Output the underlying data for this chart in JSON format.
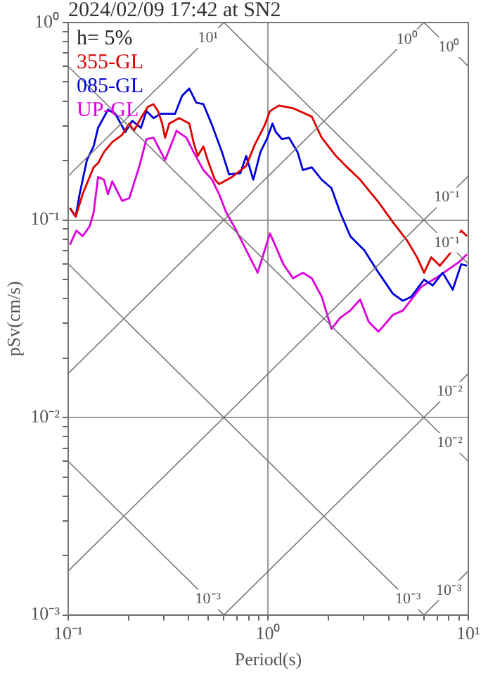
{
  "chart_data": {
    "type": "line",
    "title": "2024/02/09 17:42 at SN2",
    "xlabel": "Period(s)",
    "ylabel": "pSv(cm/s)",
    "legend_title": "h= 5%",
    "legend": "top left",
    "marker": "none",
    "line_style": "solid",
    "log": "xy",
    "grid": true,
    "xlim": [
      0.1,
      10
    ],
    "ylim": [
      0.001,
      1
    ],
    "xticks": [
      {
        "value": 0.1,
        "label": "10⁻¹"
      },
      {
        "value": 0.2,
        "label": null
      },
      {
        "value": 0.3,
        "label": null
      },
      {
        "value": 0.4,
        "label": null
      },
      {
        "value": 0.5,
        "label": null
      },
      {
        "value": 0.6,
        "label": null
      },
      {
        "value": 0.7,
        "label": null
      },
      {
        "value": 0.8,
        "label": null
      },
      {
        "value": 0.9,
        "label": null
      },
      {
        "value": 1,
        "label": "10⁰"
      },
      {
        "value": 2,
        "label": null
      },
      {
        "value": 3,
        "label": null
      },
      {
        "value": 4,
        "label": null
      },
      {
        "value": 5,
        "label": null
      },
      {
        "value": 6,
        "label": null
      },
      {
        "value": 7,
        "label": null
      },
      {
        "value": 8,
        "label": null
      },
      {
        "value": 9,
        "label": null
      },
      {
        "value": 10,
        "label": "10¹"
      }
    ],
    "yticks": [
      {
        "value": 0.001,
        "label": "10⁻³"
      },
      {
        "value": 0.002,
        "label": null
      },
      {
        "value": 0.003,
        "label": null
      },
      {
        "value": 0.004,
        "label": null
      },
      {
        "value": 0.005,
        "label": null
      },
      {
        "value": 0.006,
        "label": null
      },
      {
        "value": 0.007,
        "label": null
      },
      {
        "value": 0.008,
        "label": null
      },
      {
        "value": 0.009,
        "label": null
      },
      {
        "value": 0.01,
        "label": "10⁻²"
      },
      {
        "value": 0.02,
        "label": null
      },
      {
        "value": 0.03,
        "label": null
      },
      {
        "value": 0.04,
        "label": null
      },
      {
        "value": 0.05,
        "label": null
      },
      {
        "value": 0.06,
        "label": null
      },
      {
        "value": 0.07,
        "label": null
      },
      {
        "value": 0.08,
        "label": null
      },
      {
        "value": 0.09,
        "label": null
      },
      {
        "value": 0.1,
        "label": "10⁻¹"
      },
      {
        "value": 0.2,
        "label": null
      },
      {
        "value": 0.3,
        "label": null
      },
      {
        "value": 0.4,
        "label": null
      },
      {
        "value": 0.5,
        "label": null
      },
      {
        "value": 0.6,
        "label": null
      },
      {
        "value": 0.7,
        "label": null
      },
      {
        "value": 0.8,
        "label": null
      },
      {
        "value": 0.9,
        "label": null
      },
      {
        "value": 1,
        "label": "10⁰"
      }
    ],
    "series": [
      {
        "color": "#777777",
        "x": [
          0.1,
          0.6
        ],
        "values": [
          0.006,
          0.001
        ]
      },
      {
        "color": "#777777",
        "x": [
          0.1,
          6
        ],
        "values": [
          0.06,
          0.001
        ]
      },
      {
        "color": "#777777",
        "x": [
          0.1,
          10
        ],
        "values": [
          0.6,
          0.006
        ]
      },
      {
        "color": "#777777",
        "x": [
          0.6,
          10
        ],
        "values": [
          1,
          0.06
        ]
      },
      {
        "color": "#777777",
        "x": [
          6,
          10
        ],
        "values": [
          1,
          0.6
        ]
      },
      {
        "color": "#777777",
        "x": [
          6,
          10
        ],
        "values": [
          0.001,
          0.00167
        ]
      },
      {
        "color": "#777777",
        "x": [
          0.6,
          10
        ],
        "values": [
          0.001,
          0.0167
        ]
      },
      {
        "color": "#777777",
        "x": [
          0.1,
          10
        ],
        "values": [
          0.00167,
          0.167
        ]
      },
      {
        "color": "#777777",
        "x": [
          0.1,
          6
        ],
        "values": [
          0.0167,
          1
        ]
      },
      {
        "color": "#777777",
        "x": [
          0.1,
          0.6
        ],
        "values": [
          0.167,
          1
        ]
      },
      {
        "name": "355-GL",
        "color": "#dd0000",
        "x": [
          0.102,
          0.109,
          0.118,
          0.134,
          0.141,
          0.151,
          0.166,
          0.186,
          0.202,
          0.213,
          0.231,
          0.25,
          0.267,
          0.281,
          0.295,
          0.305,
          0.32,
          0.359,
          0.403,
          0.423,
          0.444,
          0.474,
          0.498,
          0.541,
          0.568,
          0.659,
          0.776,
          0.855,
          0.96,
          1.02,
          1.13,
          1.33,
          1.65,
          1.85,
          2.18,
          2.44,
          2.88,
          3.56,
          4.2,
          4.94,
          5.54,
          6.01,
          6.53,
          7.21,
          8.36,
          9.21,
          9.84
        ],
        "values": [
          0.115,
          0.104,
          0.135,
          0.185,
          0.194,
          0.221,
          0.248,
          0.27,
          0.308,
          0.283,
          0.328,
          0.374,
          0.386,
          0.356,
          0.308,
          0.261,
          0.308,
          0.328,
          0.308,
          0.248,
          0.211,
          0.236,
          0.201,
          0.16,
          0.152,
          0.165,
          0.188,
          0.24,
          0.302,
          0.356,
          0.38,
          0.368,
          0.334,
          0.261,
          0.211,
          0.188,
          0.16,
          0.123,
          0.0975,
          0.0788,
          0.0648,
          0.0541,
          0.0648,
          0.0587,
          0.0703,
          0.0885,
          0.0828
        ]
      },
      {
        "name": "085-GL",
        "color": "#0000dd",
        "x": [
          0.102,
          0.109,
          0.114,
          0.124,
          0.134,
          0.141,
          0.158,
          0.172,
          0.193,
          0.209,
          0.231,
          0.246,
          0.267,
          0.29,
          0.342,
          0.371,
          0.403,
          0.437,
          0.474,
          0.524,
          0.587,
          0.637,
          0.726,
          0.776,
          0.842,
          0.914,
          0.991,
          1.05,
          1.09,
          1.17,
          1.27,
          1.4,
          1.49,
          1.65,
          1.85,
          2.07,
          2.29,
          2.57,
          3.02,
          3.56,
          4.2,
          4.71,
          5.19,
          6.01,
          6.64,
          7.45,
          8.36,
          9.21,
          9.84
        ],
        "values": [
          0.115,
          0.104,
          0.135,
          0.201,
          0.236,
          0.293,
          0.362,
          0.345,
          0.279,
          0.318,
          0.293,
          0.356,
          0.328,
          0.345,
          0.345,
          0.426,
          0.463,
          0.393,
          0.386,
          0.302,
          0.221,
          0.17,
          0.173,
          0.211,
          0.16,
          0.221,
          0.261,
          0.308,
          0.279,
          0.257,
          0.261,
          0.221,
          0.179,
          0.185,
          0.16,
          0.145,
          0.109,
          0.0828,
          0.0703,
          0.0541,
          0.0423,
          0.039,
          0.0409,
          0.0499,
          0.0467,
          0.0541,
          0.0444,
          0.0597,
          0.0587
        ]
      },
      {
        "name": "UP-GL",
        "color": "#dd00dd",
        "x": [
          0.102,
          0.11,
          0.118,
          0.128,
          0.134,
          0.141,
          0.151,
          0.158,
          0.166,
          0.186,
          0.202,
          0.227,
          0.246,
          0.267,
          0.305,
          0.348,
          0.39,
          0.423,
          0.474,
          0.524,
          0.568,
          0.617,
          0.692,
          0.776,
          0.885,
          0.96,
          1.02,
          1.08,
          1.19,
          1.33,
          1.49,
          1.65,
          1.85,
          2.07,
          2.29,
          2.57,
          2.88,
          3.18,
          3.56,
          4.2,
          4.71,
          5.82,
          6.86,
          8.08,
          9.06,
          9.84
        ],
        "values": [
          0.075,
          0.0885,
          0.0828,
          0.0929,
          0.109,
          0.165,
          0.16,
          0.135,
          0.157,
          0.125,
          0.129,
          0.188,
          0.257,
          0.261,
          0.201,
          0.283,
          0.261,
          0.221,
          0.179,
          0.16,
          0.135,
          0.109,
          0.0885,
          0.0703,
          0.0541,
          0.0703,
          0.0855,
          0.075,
          0.0597,
          0.0507,
          0.0541,
          0.0507,
          0.0409,
          0.0281,
          0.032,
          0.0348,
          0.0396,
          0.0305,
          0.0272,
          0.0331,
          0.0348,
          0.0459,
          0.0507,
          0.0568,
          0.0617,
          0.067
        ]
      }
    ],
    "annotations": [
      {
        "text": "10¹",
        "x": 0.5,
        "y": 0.833
      },
      {
        "text": "10⁰",
        "x": 4.94,
        "y": 0.823
      },
      {
        "text": "10⁰",
        "x": 8,
        "y": 0.75
      },
      {
        "text": "10⁻¹",
        "x": 7.82,
        "y": 0.13
      },
      {
        "text": "10⁻¹",
        "x": 7.82,
        "y": 0.0767
      },
      {
        "text": "10⁻²",
        "x": 8.08,
        "y": 0.0135
      },
      {
        "text": "10⁻²",
        "x": 8.08,
        "y": 0.00743
      },
      {
        "text": "10⁻³",
        "x": 0.5,
        "y": 0.0012
      },
      {
        "text": "10⁻³",
        "x": 5,
        "y": 0.0012
      },
      {
        "text": "10⁻³",
        "x": 8,
        "y": 0.00133
      }
    ]
  }
}
